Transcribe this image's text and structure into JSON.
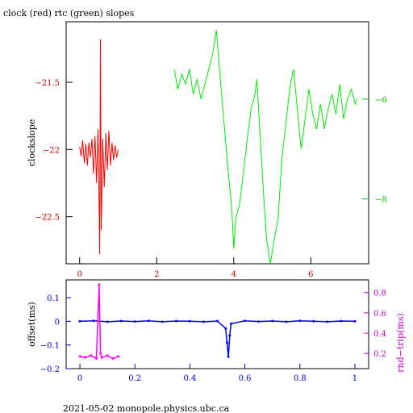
{
  "colors": {
    "clock": "#ff0000",
    "rtc": "#00ee00",
    "offset": "#0000ff",
    "rndtrip": "#ff00ff",
    "axis": "#000000",
    "red_axis": "#cc0000",
    "green_axis": "#00cc00",
    "blue_axis": "#0000cc",
    "magenta_axis": "#cc00cc"
  },
  "footer": "2021-05-02  monopole.physics.ubc.ca",
  "chart_data": [
    {
      "type": "line",
      "title": "clock (red) rtc (green) slopes",
      "ylabel": "clockslope",
      "xlabel": "",
      "xlim": [
        -0.35,
        7.5
      ],
      "ylim_left": [
        -22.85,
        -21.05
      ],
      "ylim_right": [
        -9.3,
        -4.45
      ],
      "x_ticks": [
        0,
        2,
        4,
        6
      ],
      "y_ticks_left": [
        -21.5,
        -22,
        -22.5
      ],
      "y_tick_labels_left": [
        "−21.5",
        "−22",
        "−22.5"
      ],
      "y_ticks_right": [
        -6,
        -8
      ],
      "y_tick_labels_right": [
        "−6",
        "−8"
      ],
      "grid": false,
      "series": [
        {
          "name": "clock",
          "axis": "left",
          "points": [
            [
              0.0,
              -21.98
            ],
            [
              0.04,
              -22.05
            ],
            [
              0.08,
              -21.93
            ],
            [
              0.12,
              -22.1
            ],
            [
              0.16,
              -21.96
            ],
            [
              0.2,
              -22.12
            ],
            [
              0.24,
              -21.95
            ],
            [
              0.28,
              -22.06
            ],
            [
              0.32,
              -21.92
            ],
            [
              0.36,
              -22.18
            ],
            [
              0.4,
              -21.9
            ],
            [
              0.44,
              -22.25
            ],
            [
              0.48,
              -21.85
            ],
            [
              0.52,
              -22.78
            ],
            [
              0.54,
              -21.18
            ],
            [
              0.56,
              -22.6
            ],
            [
              0.6,
              -21.92
            ],
            [
              0.64,
              -22.28
            ],
            [
              0.68,
              -21.88
            ],
            [
              0.72,
              -22.15
            ],
            [
              0.76,
              -21.86
            ],
            [
              0.8,
              -22.12
            ],
            [
              0.84,
              -21.95
            ],
            [
              0.88,
              -22.08
            ],
            [
              0.92,
              -21.97
            ],
            [
              0.96,
              -22.06
            ],
            [
              1.0,
              -22.0
            ]
          ]
        },
        {
          "name": "rtc",
          "axis": "right",
          "points": [
            [
              2.45,
              -5.4
            ],
            [
              2.55,
              -5.8
            ],
            [
              2.65,
              -5.5
            ],
            [
              2.75,
              -5.7
            ],
            [
              2.85,
              -5.4
            ],
            [
              2.95,
              -5.9
            ],
            [
              3.05,
              -5.6
            ],
            [
              3.15,
              -6.0
            ],
            [
              3.25,
              -5.7
            ],
            [
              3.35,
              -5.4
            ],
            [
              3.45,
              -5.1
            ],
            [
              3.55,
              -4.62
            ],
            [
              3.65,
              -5.6
            ],
            [
              3.75,
              -6.5
            ],
            [
              3.85,
              -7.4
            ],
            [
              3.95,
              -8.2
            ],
            [
              4.0,
              -9.0
            ],
            [
              4.05,
              -8.4
            ],
            [
              4.15,
              -8.1
            ],
            [
              4.25,
              -7.5
            ],
            [
              4.35,
              -6.8
            ],
            [
              4.45,
              -6.2
            ],
            [
              4.55,
              -5.9
            ],
            [
              4.6,
              -5.6
            ],
            [
              4.65,
              -6.3
            ],
            [
              4.75,
              -7.6
            ],
            [
              4.85,
              -8.8
            ],
            [
              4.95,
              -9.3
            ],
            [
              5.05,
              -8.8
            ],
            [
              5.15,
              -8.4
            ],
            [
              5.25,
              -7.2
            ],
            [
              5.35,
              -6.5
            ],
            [
              5.45,
              -5.8
            ],
            [
              5.55,
              -5.4
            ],
            [
              5.65,
              -6.2
            ],
            [
              5.75,
              -7.0
            ],
            [
              5.85,
              -6.4
            ],
            [
              5.95,
              -5.8
            ],
            [
              6.05,
              -6.3
            ],
            [
              6.15,
              -6.6
            ],
            [
              6.25,
              -6.1
            ],
            [
              6.35,
              -6.6
            ],
            [
              6.45,
              -6.2
            ],
            [
              6.55,
              -5.9
            ],
            [
              6.65,
              -6.3
            ],
            [
              6.75,
              -5.7
            ],
            [
              6.85,
              -6.4
            ],
            [
              6.95,
              -6.0
            ],
            [
              7.05,
              -5.8
            ],
            [
              7.15,
              -6.1
            ],
            [
              7.2,
              -6.0
            ]
          ]
        }
      ]
    },
    {
      "type": "scatter",
      "title": "",
      "ylabel": "offset(ms)",
      "ylabel_right": "rnd−trip(ms)",
      "xlabel": "",
      "xlim": [
        -0.05,
        1.05
      ],
      "ylim_left": [
        -0.2,
        0.175
      ],
      "ylim_right": [
        0.05,
        0.925
      ],
      "x_ticks": [
        0,
        0.2,
        0.4,
        0.6,
        0.8,
        1
      ],
      "x_tick_labels": [
        "0",
        "0.2",
        "0.4",
        "0.6",
        "0.8",
        "1"
      ],
      "y_ticks_left": [
        0.1,
        0,
        -0.1,
        -0.2
      ],
      "y_tick_labels_left": [
        "0.1",
        "0",
        "−0.1",
        "−0.2"
      ],
      "y_ticks_right": [
        0.8,
        0.6,
        0.4,
        0.2
      ],
      "y_tick_labels_right": [
        "0.8",
        "0.6",
        "0.4",
        "0.2"
      ],
      "grid": false,
      "series": [
        {
          "name": "offset",
          "axis": "left",
          "points": [
            [
              0.0,
              0.0
            ],
            [
              0.05,
              0.002
            ],
            [
              0.1,
              -0.002
            ],
            [
              0.15,
              0.001
            ],
            [
              0.2,
              -0.001
            ],
            [
              0.25,
              0.002
            ],
            [
              0.3,
              -0.002
            ],
            [
              0.35,
              0.001
            ],
            [
              0.4,
              0.0
            ],
            [
              0.45,
              -0.002
            ],
            [
              0.5,
              0.001
            ],
            [
              0.53,
              -0.03
            ],
            [
              0.535,
              -0.09
            ],
            [
              0.54,
              -0.15
            ],
            [
              0.545,
              -0.06
            ],
            [
              0.55,
              -0.01
            ],
            [
              0.6,
              0.002
            ],
            [
              0.65,
              -0.001
            ],
            [
              0.7,
              0.001
            ],
            [
              0.75,
              -0.002
            ],
            [
              0.8,
              0.002
            ],
            [
              0.85,
              0.0
            ],
            [
              0.9,
              -0.002
            ],
            [
              0.95,
              0.001
            ],
            [
              1.0,
              0.0
            ]
          ]
        },
        {
          "name": "rnd-trip",
          "axis": "right",
          "points": [
            [
              0.0,
              0.17
            ],
            [
              0.02,
              0.16
            ],
            [
              0.04,
              0.18
            ],
            [
              0.06,
              0.15
            ],
            [
              0.07,
              0.88
            ],
            [
              0.075,
              0.2
            ],
            [
              0.08,
              0.16
            ],
            [
              0.1,
              0.18
            ],
            [
              0.12,
              0.15
            ],
            [
              0.14,
              0.17
            ]
          ]
        }
      ]
    }
  ]
}
